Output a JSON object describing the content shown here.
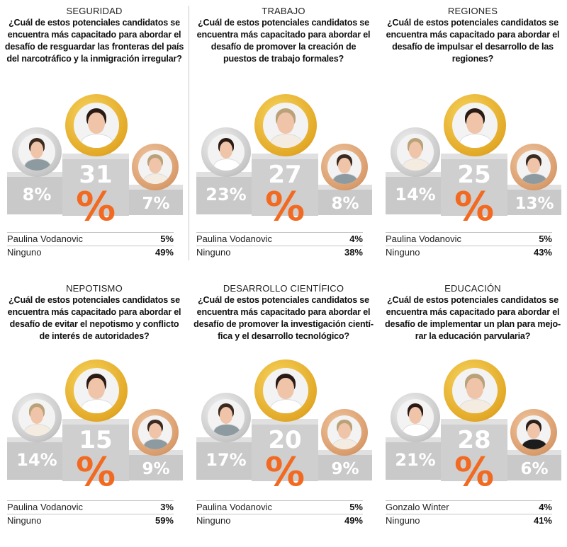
{
  "colors": {
    "accent_orange": "#f26a21",
    "podium_gray": "#c9c9c9",
    "gold": "#e3a927",
    "silver": "#c7c7c7",
    "bronze": "#d99c6c"
  },
  "chart_data": [
    {
      "type": "table",
      "category": "SEGURIDAD",
      "question": "¿Cuál de estos potenciales candidatos se encuentra más capacitado para abordar el desafío de resguardar las fronteras del país del narcotráfico y la inmigración irregular?",
      "first": {
        "number": "31",
        "sign": "%",
        "value": 31
      },
      "second": {
        "label": "8%",
        "value": 8
      },
      "third": {
        "label": "7%",
        "value": 7
      },
      "rows": [
        {
          "name": "Paulina Vodanovic",
          "pct": "5%"
        },
        {
          "name": "Ninguno",
          "pct": "49%"
        }
      ]
    },
    {
      "type": "table",
      "category": "TRABAJO",
      "question": "¿Cuál de estos potenciales candidatos se encuentra más capacitado para abordar el desafío de promover la creación de puestos de trabajo formales?",
      "first": {
        "number": "27",
        "sign": "%",
        "value": 27
      },
      "second": {
        "label": "23%",
        "value": 23
      },
      "third": {
        "label": "8%",
        "value": 8
      },
      "rows": [
        {
          "name": "Paulina Vodanovic",
          "pct": "4%"
        },
        {
          "name": "Ninguno",
          "pct": "38%"
        }
      ]
    },
    {
      "type": "table",
      "category": "REGIONES",
      "question": "¿Cuál de estos potenciales candidatos se encuentra más capacitado para abordar el desafío de impulsar el desarrollo de las regiones?",
      "first": {
        "number": "25",
        "sign": "%",
        "value": 25
      },
      "second": {
        "label": "14%",
        "value": 14
      },
      "third": {
        "label": "13%",
        "value": 13
      },
      "rows": [
        {
          "name": "Paulina Vodanovic",
          "pct": "5%"
        },
        {
          "name": "Ninguno",
          "pct": "43%"
        }
      ]
    },
    {
      "type": "table",
      "category": "NEPOTISMO",
      "question": "¿Cuál de estos potenciales candidatos se encuentra más capacitado para abordar el desafío de evitar el nepotismo y conflicto de interés de autoridades?",
      "first": {
        "number": "15",
        "sign": "%",
        "value": 15
      },
      "second": {
        "label": "14%",
        "value": 14
      },
      "third": {
        "label": "9%",
        "value": 9
      },
      "rows": [
        {
          "name": "Paulina Vodanovic",
          "pct": "3%"
        },
        {
          "name": "Ninguno",
          "pct": "59%"
        }
      ]
    },
    {
      "type": "table",
      "category": "DESARROLLO CIENTÍFICO",
      "question": "¿Cuál de estos potenciales candidatos se encuentra más capacitado para abordar el desafío de promover la investigación cientí-fica y el desarrollo tecnológico?",
      "first": {
        "number": "20",
        "sign": "%",
        "value": 20
      },
      "second": {
        "label": "17%",
        "value": 17
      },
      "third": {
        "label": "9%",
        "value": 9
      },
      "rows": [
        {
          "name": "Paulina Vodanovic",
          "pct": "5%"
        },
        {
          "name": "Ninguno",
          "pct": "49%"
        }
      ]
    },
    {
      "type": "table",
      "category": "EDUCACIÓN",
      "question": "¿Cuál de estos potenciales candidatos se encuentra más capacitado para abordar el desafío de implementar un plan para mejo-rar la educación parvularia?",
      "first": {
        "number": "28",
        "sign": "%",
        "value": 28
      },
      "second": {
        "label": "21%",
        "value": 21
      },
      "third": {
        "label": "6%",
        "value": 6
      },
      "rows": [
        {
          "name": "Gonzalo Winter",
          "pct": "4%"
        },
        {
          "name": "Ninguno",
          "pct": "41%"
        }
      ]
    }
  ],
  "portraits": [
    [
      "dark-curly-man",
      "short-dark-woman",
      "blond-woman"
    ],
    [
      "short-dark-woman",
      "blond-woman",
      "dark-curly-man"
    ],
    [
      "blond-woman",
      "short-dark-woman",
      "dark-curly-man"
    ],
    [
      "blond-woman",
      "short-dark-woman",
      "dark-curly-man"
    ],
    [
      "dark-curly-man",
      "short-dark-woman",
      "blond-woman"
    ],
    [
      "short-dark-woman",
      "blond-woman",
      "long-dark-woman"
    ]
  ]
}
